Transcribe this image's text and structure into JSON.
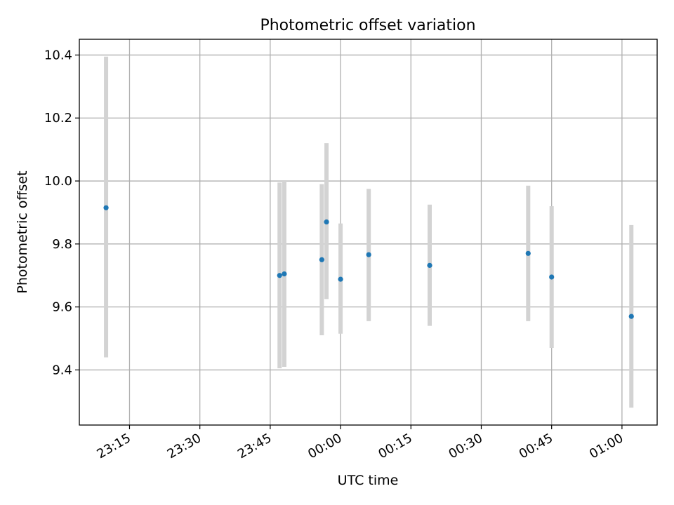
{
  "chart_data": {
    "type": "scatter",
    "title": "Photometric offset variation",
    "xlabel": "UTC time",
    "ylabel": "Photometric offset",
    "x_ticks": [
      "23:15",
      "23:30",
      "23:45",
      "00:00",
      "00:15",
      "00:30",
      "00:45",
      "01:00"
    ],
    "x_tick_minutes": [
      -45,
      -30,
      -15,
      0,
      15,
      30,
      45,
      60
    ],
    "xlim_minutes": [
      -55.7,
      67.5
    ],
    "y_ticks": [
      "9.4",
      "9.6",
      "9.8",
      "10.0",
      "10.2",
      "10.4"
    ],
    "y_tick_values": [
      9.4,
      9.6,
      9.8,
      10.0,
      10.2,
      10.4
    ],
    "ylim": [
      9.225,
      10.45
    ],
    "grid": true,
    "point_color": "#1f77b4",
    "error_color": "#d3d3d3",
    "points": [
      {
        "x": "23:10",
        "y": 9.915,
        "y_low": 9.44,
        "y_high": 10.395
      },
      {
        "x": "23:47",
        "y": 9.7,
        "y_low": 9.405,
        "y_high": 9.995
      },
      {
        "x": "23:48",
        "y": 9.705,
        "y_low": 9.41,
        "y_high": 10.0
      },
      {
        "x": "23:56",
        "y": 9.75,
        "y_low": 9.51,
        "y_high": 9.99
      },
      {
        "x": "23:57",
        "y": 9.87,
        "y_low": 9.625,
        "y_high": 10.12
      },
      {
        "x": "00:00",
        "y": 9.688,
        "y_low": 9.515,
        "y_high": 9.865
      },
      {
        "x": "00:06",
        "y": 9.766,
        "y_low": 9.555,
        "y_high": 9.975
      },
      {
        "x": "00:19",
        "y": 9.732,
        "y_low": 9.54,
        "y_high": 9.925
      },
      {
        "x": "00:40",
        "y": 9.77,
        "y_low": 9.555,
        "y_high": 9.985
      },
      {
        "x": "00:45",
        "y": 9.695,
        "y_low": 9.47,
        "y_high": 9.92
      },
      {
        "x": "01:02",
        "y": 9.57,
        "y_low": 9.28,
        "y_high": 9.86
      }
    ]
  }
}
